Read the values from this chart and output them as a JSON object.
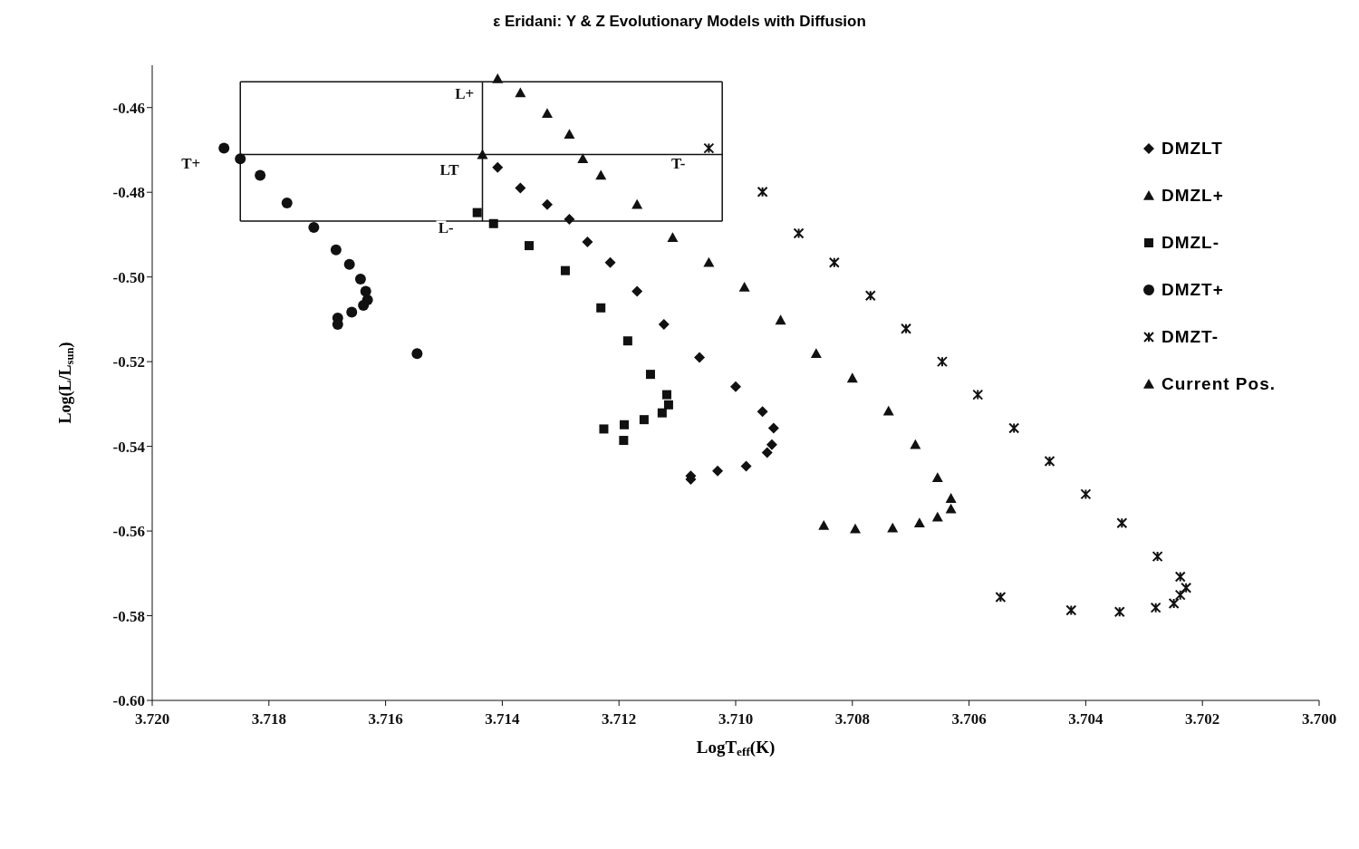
{
  "chart_data": {
    "type": "scatter",
    "title": "ε Eridani: Y & Z Evolutionary Models with Diffusion",
    "xlabel": "LogT$_{eff}$(K)",
    "ylabel": "Log(L/L$_{sun}$)",
    "xlim": [
      3.72,
      3.7
    ],
    "ylim": [
      -0.6,
      -0.45
    ],
    "xticks": [
      {
        "value": 3.72,
        "label": "3.720"
      },
      {
        "value": 3.718,
        "label": "3.718"
      },
      {
        "value": 3.716,
        "label": "3.716"
      },
      {
        "value": 3.714,
        "label": "3.714"
      },
      {
        "value": 3.712,
        "label": "3.712"
      },
      {
        "value": 3.71,
        "label": "3.710"
      },
      {
        "value": 3.708,
        "label": "3.708"
      },
      {
        "value": 3.706,
        "label": "3.706"
      },
      {
        "value": 3.704,
        "label": "3.704"
      },
      {
        "value": 3.702,
        "label": "3.702"
      },
      {
        "value": 3.7,
        "label": "3.700"
      }
    ],
    "yticks": [
      {
        "value": -0.46,
        "label": "-0.46"
      },
      {
        "value": -0.48,
        "label": "-0.48"
      },
      {
        "value": -0.5,
        "label": "-0.50"
      },
      {
        "value": -0.52,
        "label": "-0.52"
      },
      {
        "value": -0.54,
        "label": "-0.54"
      },
      {
        "value": -0.56,
        "label": "-0.56"
      },
      {
        "value": -0.58,
        "label": "-0.58"
      },
      {
        "value": -0.6,
        "label": "-0.60"
      }
    ],
    "grid": false,
    "legend": "top right",
    "annotations": [
      {
        "text": "T+",
        "x": 3.71877,
        "y": -0.4696
      },
      {
        "text": "L+",
        "x": 3.71408,
        "y": -0.4532
      },
      {
        "text": "LT",
        "x": 3.71434,
        "y": -0.4711
      },
      {
        "text": "L-",
        "x": 3.71443,
        "y": -0.4848
      },
      {
        "text": "T-",
        "x": 3.71046,
        "y": -0.4696
      }
    ],
    "series": [
      {
        "name": "DMZLT",
        "color": "#111111",
        "marker": "diamond",
        "x": [
          3.71408,
          3.71369,
          3.71323,
          3.71285,
          3.71254,
          3.71215,
          3.71169,
          3.71123,
          3.71062,
          3.71,
          3.70954,
          3.70935,
          3.70938,
          3.70946,
          3.70982,
          3.71031,
          3.71077,
          3.71077
        ],
        "values": [
          -0.4741,
          -0.479,
          -0.4829,
          -0.4864,
          -0.4917,
          -0.4966,
          -0.5034,
          -0.5112,
          -0.519,
          -0.5259,
          -0.5318,
          -0.5357,
          -0.5396,
          -0.5415,
          -0.5447,
          -0.5458,
          -0.547,
          -0.5478
        ]
      },
      {
        "name": "DMZL+",
        "color": "#111111",
        "marker": "triangle",
        "x": [
          3.71408,
          3.71369,
          3.71323,
          3.71285,
          3.71262,
          3.71231,
          3.71169,
          3.71108,
          3.71046,
          3.70985,
          3.70923,
          3.70862,
          3.708,
          3.70738,
          3.70692,
          3.70654,
          3.70631,
          3.70631,
          3.70654,
          3.70685,
          3.70731,
          3.70795,
          3.70849
        ],
        "values": [
          -0.4532,
          -0.4565,
          -0.4614,
          -0.4663,
          -0.4721,
          -0.476,
          -0.4829,
          -0.4907,
          -0.4966,
          -0.5024,
          -0.5102,
          -0.5181,
          -0.5239,
          -0.5317,
          -0.5396,
          -0.5474,
          -0.5523,
          -0.5548,
          -0.5567,
          -0.5581,
          -0.5593,
          -0.5595,
          -0.5587
        ]
      },
      {
        "name": "DMZL-",
        "color": "#111111",
        "marker": "square",
        "x": [
          3.71443,
          3.71415,
          3.71354,
          3.71292,
          3.71231,
          3.71185,
          3.71146,
          3.71118,
          3.71115,
          3.71126,
          3.71157,
          3.71191,
          3.71192,
          3.71226
        ],
        "values": [
          -0.4848,
          -0.4874,
          -0.4926,
          -0.4985,
          -0.5073,
          -0.5151,
          -0.523,
          -0.5278,
          -0.5302,
          -0.5321,
          -0.5337,
          -0.5349,
          -0.5386,
          -0.5359
        ]
      },
      {
        "name": "DMZT+",
        "color": "#111111",
        "marker": "circle",
        "x": [
          3.71877,
          3.71849,
          3.71815,
          3.71769,
          3.71723,
          3.71685,
          3.71662,
          3.71643,
          3.71634,
          3.71631,
          3.71638,
          3.71658,
          3.71682,
          3.71682,
          3.71546
        ],
        "values": [
          -0.4696,
          -0.4721,
          -0.476,
          -0.4825,
          -0.4883,
          -0.4936,
          -0.497,
          -0.5005,
          -0.5034,
          -0.5054,
          -0.5067,
          -0.5083,
          -0.5097,
          -0.5112,
          -0.5181
        ]
      },
      {
        "name": "DMZT-",
        "color": "#111111",
        "marker": "cross",
        "x": [
          3.71046,
          3.70954,
          3.70892,
          3.70831,
          3.70769,
          3.70708,
          3.70646,
          3.70585,
          3.70523,
          3.70462,
          3.704,
          3.70338,
          3.70277,
          3.70238,
          3.70228,
          3.70238,
          3.70249,
          3.7028,
          3.70342,
          3.70425,
          3.70546
        ],
        "values": [
          -0.4696,
          -0.4799,
          -0.4897,
          -0.4966,
          -0.5044,
          -0.5122,
          -0.52,
          -0.5278,
          -0.5357,
          -0.5435,
          -0.5513,
          -0.5581,
          -0.566,
          -0.5708,
          -0.5734,
          -0.5751,
          -0.5771,
          -0.5781,
          -0.5791,
          -0.5787,
          -0.5756
        ]
      },
      {
        "name": "Current Pos.",
        "color": "#111111",
        "marker": "triangle",
        "x": [
          3.71434
        ],
        "values": [
          -0.4711
        ]
      },
      {
        "type": "line",
        "color": "#111111",
        "marker": "none",
        "x": [
          3.71849,
          3.71023
        ],
        "values": [
          -0.4539,
          -0.4539
        ]
      },
      {
        "type": "line",
        "color": "#111111",
        "marker": "none",
        "x": [
          3.71849,
          3.71023
        ],
        "values": [
          -0.4868,
          -0.4868
        ]
      },
      {
        "type": "line",
        "color": "#111111",
        "marker": "none",
        "x": [
          3.71849,
          3.71849
        ],
        "values": [
          -0.4539,
          -0.4868
        ]
      },
      {
        "type": "line",
        "color": "#111111",
        "marker": "none",
        "x": [
          3.71023,
          3.71023
        ],
        "values": [
          -0.4539,
          -0.4868
        ]
      },
      {
        "type": "line",
        "color": "#111111",
        "marker": "none",
        "x": [
          3.71849,
          3.71023
        ],
        "values": [
          -0.4711,
          -0.4711
        ]
      },
      {
        "type": "line",
        "color": "#111111",
        "marker": "none",
        "x": [
          3.71434,
          3.71434
        ],
        "values": [
          -0.4539,
          -0.4868
        ]
      }
    ]
  }
}
